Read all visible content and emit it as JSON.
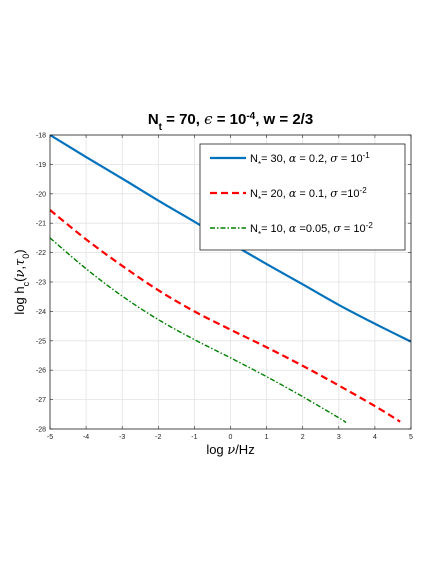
{
  "chart_data": {
    "type": "line",
    "title_parts": [
      "N",
      "t",
      " = 70, ",
      "ϵ",
      " = 10",
      "-4",
      ", w = 2/3"
    ],
    "title": "N_t = 70, ϵ = 10^-4, w = 2/3",
    "xlabel_parts": [
      "log ",
      "ν",
      "/Hz"
    ],
    "xlabel": "log ν/Hz",
    "ylabel_parts": [
      "log h",
      "c",
      "(",
      "ν",
      ",",
      "τ",
      "0",
      ")"
    ],
    "ylabel": "log h_c(ν,τ_0)",
    "xlim": [
      -5,
      5
    ],
    "ylim": [
      -28,
      -18
    ],
    "xticks": [
      -5,
      -4,
      -3,
      -2,
      -1,
      0,
      1,
      2,
      3,
      4,
      5
    ],
    "yticks": [
      -28,
      -27,
      -26,
      -25,
      -24,
      -23,
      -22,
      -21,
      -20,
      -19,
      -18
    ],
    "grid": true,
    "legend_position": "top-right",
    "series": [
      {
        "name": "N* = 30, α = 0.2, σ = 10^-1",
        "legend_parts": [
          "N",
          "*",
          "= 30, ",
          "α",
          " = 0.2, ",
          "σ",
          " = 10",
          "-1"
        ],
        "color": "#0072bd",
        "style": "solid",
        "x": [
          -5,
          -4,
          -3,
          -2,
          -1,
          0,
          1,
          2,
          3,
          4,
          5
        ],
        "y": [
          -18.0,
          -18.75,
          -19.48,
          -20.23,
          -20.95,
          -21.68,
          -22.39,
          -23.08,
          -23.78,
          -24.42,
          -25.03
        ]
      },
      {
        "name": "N* = 20, α = 0.1, σ =10^-2",
        "legend_parts": [
          "N",
          "*",
          "= 20, ",
          "α",
          " = 0.1, ",
          "σ",
          " =10",
          "-2"
        ],
        "color": "#ff0000",
        "style": "dashed",
        "x": [
          -5,
          -4,
          -3,
          -2,
          -1,
          0,
          1,
          2,
          3,
          4,
          4.7
        ],
        "y": [
          -20.55,
          -21.55,
          -22.45,
          -23.28,
          -24.0,
          -24.62,
          -25.22,
          -25.85,
          -26.52,
          -27.22,
          -27.75
        ]
      },
      {
        "name": "N* = 10, α =0.05, σ = 10^-2",
        "legend_parts": [
          "N",
          "*",
          "= 10, ",
          "α",
          " =0.05, ",
          "σ",
          " = 10",
          "-2"
        ],
        "color": "#008000",
        "style": "dashdot",
        "x": [
          -5,
          -4,
          -3,
          -2,
          -1,
          0,
          1,
          2,
          3,
          3.2
        ],
        "y": [
          -21.5,
          -22.55,
          -23.48,
          -24.28,
          -24.96,
          -25.58,
          -26.22,
          -26.9,
          -27.62,
          -27.78
        ]
      }
    ]
  }
}
